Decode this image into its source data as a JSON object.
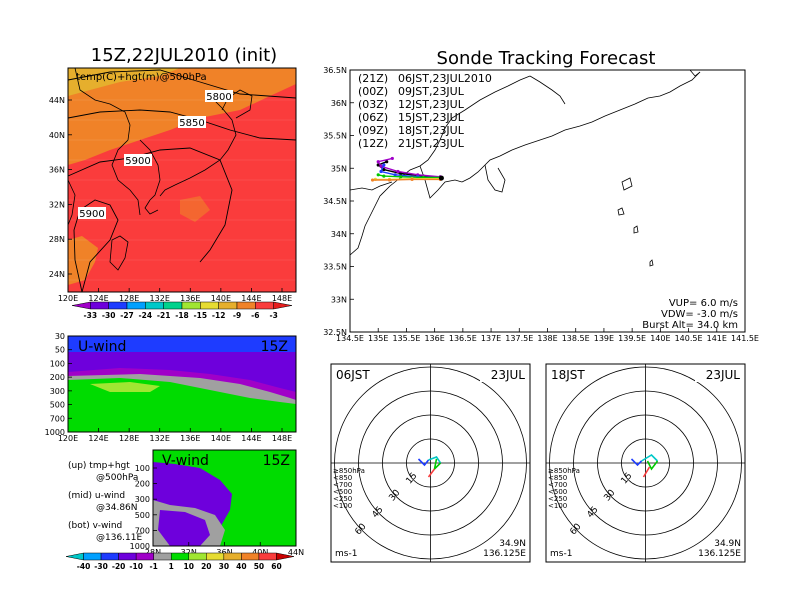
{
  "left": {
    "title": "15Z,22JUL2010 (init)",
    "map_label": "temp(C)+hgt(m)@500hPa",
    "contours": [
      "5800",
      "5850",
      "5900",
      "5900"
    ],
    "lat_ticks": [
      "44N",
      "40N",
      "36N",
      "32N",
      "28N",
      "24N"
    ],
    "lon_ticks": [
      "120E",
      "124E",
      "128E",
      "132E",
      "136E",
      "140E",
      "144E",
      "148E"
    ],
    "temp_scale": [
      "-33",
      "-30",
      "-27",
      "-24",
      "-21",
      "-18",
      "-15",
      "-12",
      "-9",
      "-6",
      "-3"
    ],
    "temp_colors": [
      "#a000c8",
      "#6e00dc",
      "#1e3cff",
      "#00a0ff",
      "#00c8c8",
      "#00d28c",
      "#a0e632",
      "#e6dc32",
      "#e6af2d",
      "#f08228",
      "#fa3c3c",
      "#e61e1e"
    ],
    "uwind": {
      "label": "U-wind",
      "time": "15Z",
      "p_ticks": [
        "30",
        "50",
        "100",
        "200",
        "300",
        "500",
        "700",
        "1000"
      ],
      "lon_ticks": [
        "120E",
        "124E",
        "128E",
        "132E",
        "136E",
        "140E",
        "144E",
        "148E"
      ]
    },
    "vwind": {
      "label": "V-wind",
      "time": "15Z",
      "p_ticks": [
        "100",
        "200",
        "300",
        "500",
        "700",
        "1000"
      ],
      "lat_ticks": [
        "28N",
        "32N",
        "36N",
        "40N",
        "44N"
      ]
    },
    "notes": [
      {
        "a": "(up) tmp+hgt",
        "b": "@500hPa"
      },
      {
        "a": "(mid) u-wind",
        "b": "@34.86N"
      },
      {
        "a": "(bot) v-wind",
        "b": "@136.11E"
      }
    ],
    "wind_scale": [
      "-40",
      "-30",
      "-20",
      "-10",
      "-1",
      "1",
      "10",
      "20",
      "30",
      "40",
      "50",
      "60"
    ],
    "wind_colors": [
      "#00c8c8",
      "#00a0ff",
      "#1e3cff",
      "#6e00dc",
      "#a000c8",
      "#a0a0a0",
      "#00dc00",
      "#a0e632",
      "#e6dc32",
      "#e6af2d",
      "#f08228",
      "#fa3c3c",
      "#c80000"
    ]
  },
  "chart_data": {
    "type": "line",
    "title": "Sonde Tracking Forecast",
    "lat_ticks": [
      "36.5N",
      "36N",
      "35.5N",
      "35N",
      "34.5N",
      "34N",
      "33.5N",
      "33N",
      "32.5N"
    ],
    "lon_ticks": [
      "134.5E",
      "135E",
      "135.5E",
      "136E",
      "136.5E",
      "137E",
      "137.5E",
      "138E",
      "138.5E",
      "139E",
      "139.5E",
      "140E",
      "140.5E",
      "141E",
      "141.5E"
    ],
    "xlim": [
      134.5,
      141.5
    ],
    "ylim": [
      32.5,
      36.5
    ],
    "launches": [
      {
        "code": "(21Z)",
        "time": "06JST,23JUL2010",
        "color": "#000000"
      },
      {
        "code": "(00Z)",
        "time": "09JST,23JUL",
        "color": "#a000c8"
      },
      {
        "code": "(03Z)",
        "time": "12JST,23JUL",
        "color": "#1e3cff"
      },
      {
        "code": "(06Z)",
        "time": "15JST,23JUL",
        "color": "#00c800"
      },
      {
        "code": "(09Z)",
        "time": "18JST,23JUL",
        "color": "#e6dc32"
      },
      {
        "code": "(12Z)",
        "time": "21JST,23JUL",
        "color": "#f08228"
      }
    ],
    "tracks": [
      {
        "color": "#000000",
        "points": [
          [
            136.1,
            34.85
          ],
          [
            135.8,
            34.88
          ],
          [
            135.4,
            34.92
          ],
          [
            135.1,
            34.98
          ],
          [
            135.0,
            35.05
          ],
          [
            135.15,
            35.1
          ]
        ]
      },
      {
        "color": "#a000c8",
        "points": [
          [
            136.1,
            34.87
          ],
          [
            135.7,
            34.9
          ],
          [
            135.35,
            34.95
          ],
          [
            135.05,
            35.03
          ],
          [
            135.0,
            35.1
          ],
          [
            135.25,
            35.15
          ]
        ]
      },
      {
        "color": "#1e3cff",
        "points": [
          [
            136.1,
            34.85
          ],
          [
            135.7,
            34.87
          ],
          [
            135.3,
            34.9
          ],
          [
            135.05,
            34.95
          ],
          [
            135.1,
            35.05
          ]
        ]
      },
      {
        "color": "#00c800",
        "points": [
          [
            136.1,
            34.86
          ],
          [
            135.8,
            34.86
          ],
          [
            135.4,
            34.87
          ],
          [
            135.1,
            34.88
          ],
          [
            135.0,
            34.9
          ]
        ]
      },
      {
        "color": "#e6dc32",
        "points": [
          [
            136.1,
            34.84
          ],
          [
            135.6,
            34.84
          ],
          [
            135.2,
            34.83
          ],
          [
            134.95,
            34.83
          ]
        ]
      },
      {
        "color": "#f08228",
        "points": [
          [
            136.1,
            34.83
          ],
          [
            135.6,
            34.83
          ],
          [
            135.2,
            34.82
          ],
          [
            134.9,
            34.82
          ]
        ]
      }
    ],
    "launch_site": [
      136.12,
      34.85
    ],
    "params": [
      "VUP=  6.0 m/s",
      "VDW= -3.0 m/s",
      "Burst Alt= 34.0 km"
    ]
  },
  "hodographs": [
    {
      "time": "06JST",
      "date": "23JUL",
      "lat": "34.9N",
      "lon": "136.125E",
      "unit": "ms-1",
      "rings": [
        "15",
        "30",
        "45",
        "60"
      ],
      "levels": [
        "≥850hPa",
        "<850",
        "<700",
        "<500",
        "<250",
        "<100"
      ],
      "level_colors": [
        "#fa3c3c",
        "#f08228",
        "#e6dc32",
        "#00c800",
        "#00c8c8",
        "#1e3cff"
      ]
    },
    {
      "time": "18JST",
      "date": "23JUL",
      "lat": "34.9N",
      "lon": "136.125E",
      "unit": "ms-1",
      "rings": [
        "15",
        "30",
        "45",
        "60"
      ],
      "levels": [
        "≥850hPa",
        "<850",
        "<700",
        "<500",
        "<250",
        "<100"
      ],
      "level_colors": [
        "#fa3c3c",
        "#f08228",
        "#e6dc32",
        "#00c800",
        "#00c8c8",
        "#1e3cff"
      ]
    }
  ]
}
